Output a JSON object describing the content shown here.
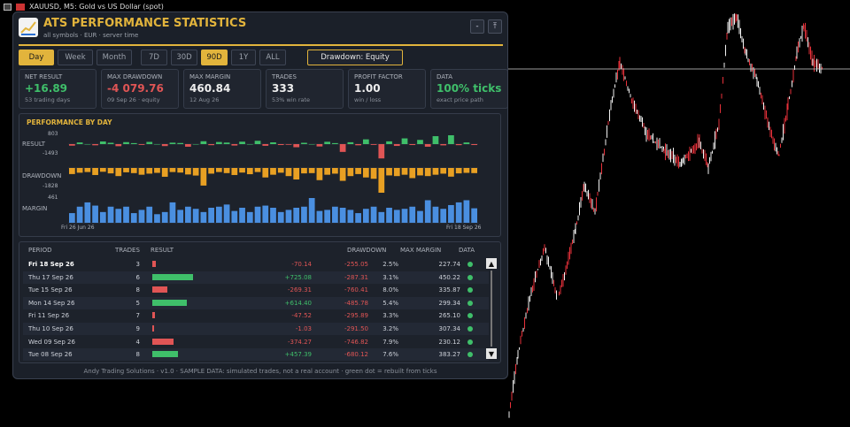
{
  "topbar": {
    "symbol_text": "XAUUSD, M5:  Gold vs US Dollar (spot)"
  },
  "header": {
    "title": "ATS PERFORMANCE STATISTICS",
    "subtitle": "all symbols  ·  EUR  ·  server time",
    "minimize_label": "-",
    "pin_label": "⤒"
  },
  "tabs": {
    "group1": [
      "Day",
      "Week",
      "Month"
    ],
    "group2": [
      "7D",
      "30D",
      "90D",
      "1Y",
      "ALL"
    ],
    "active_group1": "Day",
    "active_group2": "90D",
    "dropdown_label": "Drawdown: Equity"
  },
  "cards": [
    {
      "label": "NET RESULT",
      "value": "+16.89",
      "sub": "53 trading days",
      "tone": "pos"
    },
    {
      "label": "MAX DRAWDOWN",
      "value": "-4 079.76",
      "sub": "09 Sep 26  ·  equity",
      "tone": "neg"
    },
    {
      "label": "MAX MARGIN",
      "value": "460.84",
      "sub": "12 Aug 26",
      "tone": ""
    },
    {
      "label": "TRADES",
      "value": "333",
      "sub": "53% win rate",
      "tone": ""
    },
    {
      "label": "PROFIT FACTOR",
      "value": "1.00",
      "sub": "win / loss",
      "tone": ""
    },
    {
      "label": "DATA",
      "value": "100% ticks",
      "sub": "exact price path",
      "tone": "pos"
    }
  ],
  "perf": {
    "title": "PERFORMANCE BY DAY",
    "result_label": "RESULT",
    "result_max": "803",
    "result_min": "-1493",
    "drawdown_label": "DRAWDOWN",
    "drawdown_min": "-1828",
    "margin_label": "MARGIN",
    "margin_max": "461",
    "date_start": "Fri 26 Jun 26",
    "date_end": "Fri 18 Sep 26"
  },
  "chart_data": {
    "type": "bar",
    "title": "PERFORMANCE BY DAY",
    "x_range": [
      "Fri 26 Jun 26",
      "Fri 18 Sep 26"
    ],
    "series": [
      {
        "name": "RESULT",
        "range": [
          -1493,
          803
        ],
        "values": [
          -120,
          150,
          0,
          -90,
          240,
          120,
          -160,
          180,
          90,
          -60,
          200,
          0,
          -150,
          130,
          100,
          -200,
          0,
          260,
          -80,
          190,
          140,
          -110,
          220,
          0,
          300,
          -130,
          160,
          -70,
          -50,
          -240,
          120,
          0,
          -180,
          210,
          90,
          -600,
          170,
          -90,
          430,
          -60,
          -1100,
          250,
          -140,
          520,
          -70,
          380,
          -200,
          720,
          -95,
          803,
          -80,
          150,
          -70
        ],
        "color": "#3fbf6a",
        "negative_color": "#e05555"
      },
      {
        "name": "DRAWDOWN",
        "range": [
          -1828,
          0
        ],
        "values": [
          -450,
          -350,
          -300,
          -520,
          -280,
          -400,
          -600,
          -320,
          -380,
          -500,
          -420,
          -360,
          -650,
          -300,
          -340,
          -480,
          -560,
          -1300,
          -420,
          -300,
          -380,
          -520,
          -340,
          -460,
          -300,
          -700,
          -500,
          -350,
          -600,
          -850,
          -400,
          -380,
          -900,
          -500,
          -420,
          -950,
          -600,
          -450,
          -700,
          -800,
          -1828,
          -550,
          -600,
          -500,
          -750,
          -550,
          -600,
          -500,
          -420,
          -640,
          -400,
          -360,
          -380
        ],
        "color": "#e8a023"
      },
      {
        "name": "MARGIN",
        "range": [
          0,
          461
        ],
        "values": [
          180,
          300,
          380,
          320,
          200,
          300,
          260,
          300,
          180,
          240,
          300,
          160,
          200,
          380,
          240,
          300,
          260,
          200,
          280,
          300,
          340,
          220,
          280,
          200,
          300,
          320,
          280,
          200,
          240,
          280,
          300,
          461,
          220,
          240,
          300,
          280,
          240,
          180,
          260,
          300,
          200,
          280,
          240,
          260,
          300,
          220,
          420,
          300,
          260,
          330,
          380,
          420,
          270
        ],
        "color": "#4a8fe0"
      }
    ]
  },
  "table": {
    "headers": {
      "period": "PERIOD",
      "trades": "TRADES",
      "result": "RESULT",
      "drawdown": "DRAWDOWN",
      "max_margin": "MAX MARGIN",
      "data": "DATA"
    },
    "rows": [
      {
        "period": "Fri 18 Sep 26",
        "trades": "3",
        "result": "-70.14",
        "result_value": -70.14,
        "drawdown": "-255.05",
        "dd_pct": "2.5%",
        "margin": "227.74"
      },
      {
        "period": "Thu 17 Sep 26",
        "trades": "6",
        "result": "+725.08",
        "result_value": 725.08,
        "drawdown": "-287.31",
        "dd_pct": "3.1%",
        "margin": "450.22"
      },
      {
        "period": "Tue 15 Sep 26",
        "trades": "8",
        "result": "-269.31",
        "result_value": -269.31,
        "drawdown": "-760.41",
        "dd_pct": "8.0%",
        "margin": "335.87"
      },
      {
        "period": "Mon 14 Sep 26",
        "trades": "5",
        "result": "+614.40",
        "result_value": 614.4,
        "drawdown": "-485.78",
        "dd_pct": "5.4%",
        "margin": "299.34"
      },
      {
        "period": "Fri 11 Sep 26",
        "trades": "7",
        "result": "-47.52",
        "result_value": -47.52,
        "drawdown": "-295.89",
        "dd_pct": "3.3%",
        "margin": "265.10"
      },
      {
        "period": "Thu 10 Sep 26",
        "trades": "9",
        "result": "-1.03",
        "result_value": -1.03,
        "drawdown": "-291.50",
        "dd_pct": "3.2%",
        "margin": "307.34"
      },
      {
        "period": "Wed 09 Sep 26",
        "trades": "4",
        "result": "-374.27",
        "result_value": -374.27,
        "drawdown": "-746.82",
        "dd_pct": "7.9%",
        "margin": "230.12"
      },
      {
        "period": "Tue 08 Sep 26",
        "trades": "8",
        "result": "+457.39",
        "result_value": 457.39,
        "drawdown": "-680.12",
        "dd_pct": "7.6%",
        "margin": "383.27"
      }
    ]
  },
  "scroll": {
    "up": "▲",
    "down": "▼"
  },
  "footer": "Andy Trading Solutions  ·  v1.0  ·  SAMPLE DATA: simulated trades, not a real account  ·  green dot = rebuilt from ticks",
  "colors": {
    "accent": "#e2b43c",
    "positive": "#3fbf6a",
    "negative": "#e05555",
    "drawdown": "#e8a023",
    "margin": "#4a8fe0"
  }
}
